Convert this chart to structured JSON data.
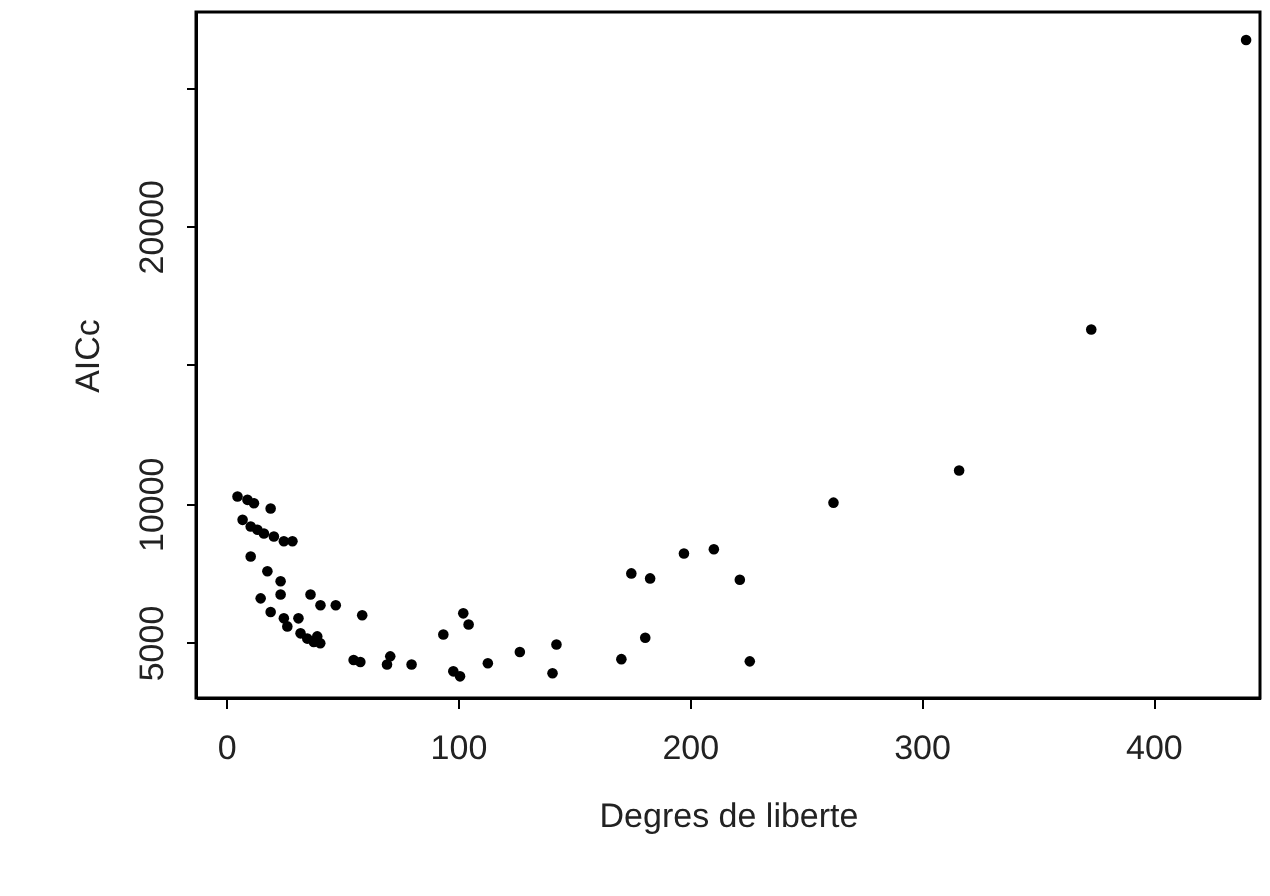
{
  "chart_data": {
    "type": "scatter",
    "xlabel": "Degres de liberte",
    "ylabel": "AICc",
    "xlim": [
      -13,
      446
    ],
    "ylim": [
      3000,
      27720
    ],
    "xticks": [
      0,
      100,
      200,
      300,
      400
    ],
    "yticks": [
      5000,
      10000,
      {
        "value": 15000,
        "label": null
      },
      20000,
      {
        "value": 25000,
        "label": null
      }
    ],
    "grid": false,
    "marker": "circle",
    "series": [
      {
        "color": "#000000",
        "x": [
          4.9,
          9.2,
          12.0,
          19.2,
          7.1,
          10.6,
          13.5,
          16.3,
          20.6,
          24.9,
          28.6,
          10.6,
          17.8,
          23.5,
          14.9,
          23.5,
          36.4,
          40.7,
          47.3,
          58.7,
          19.2,
          24.9,
          31.2,
          26.4,
          32.1,
          35.0,
          37.8,
          40.6,
          39.3,
          55.0,
          57.9,
          70.8,
          69.4,
          80.0,
          93.7,
          102.3,
          104.6,
          98.0,
          100.9,
          112.9,
          126.7,
          142.5,
          140.8,
          170.5,
          180.8,
          174.8,
          182.9,
          197.5,
          210.4,
          221.6,
          225.9,
          262.0,
          316.2,
          373.2,
          440.0
        ],
        "values": [
          10260,
          10140,
          10020,
          9830,
          9420,
          9180,
          9060,
          8930,
          8820,
          8650,
          8650,
          8100,
          7570,
          7210,
          6590,
          6730,
          6730,
          6340,
          6340,
          5980,
          6100,
          5870,
          5870,
          5580,
          5330,
          5140,
          5020,
          4970,
          5220,
          4370,
          4300,
          4500,
          4210,
          4210,
          5290,
          6050,
          5650,
          3960,
          3780,
          4250,
          4660,
          4930,
          3890,
          4400,
          5170,
          7490,
          7310,
          8210,
          8360,
          7260,
          4320,
          10040,
          11200,
          16280,
          26710
        ]
      }
    ]
  }
}
